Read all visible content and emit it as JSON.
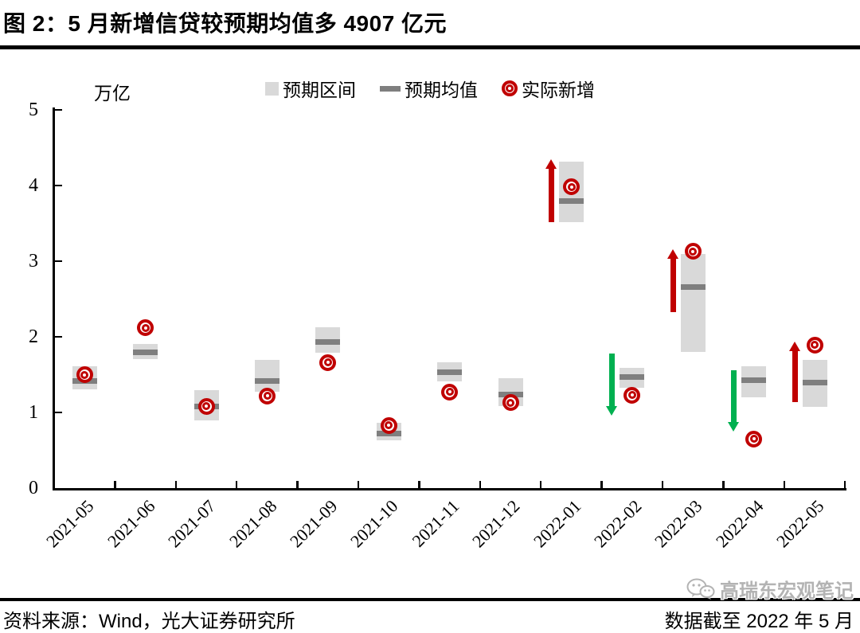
{
  "header": {
    "title": "图 2：5 月新增信贷较预期均值多 4907 亿元"
  },
  "y_axis": {
    "unit_label": "万亿",
    "tick_labels": [
      "0",
      "1",
      "2",
      "3",
      "4",
      "5"
    ]
  },
  "legend": {
    "items": [
      {
        "label": "预期区间",
        "marker": "gray-box"
      },
      {
        "label": "预期均值",
        "marker": "gray-dash"
      },
      {
        "label": "实际新增",
        "marker": "red-ring"
      }
    ]
  },
  "footer": {
    "source": "资料来源：Wind，光大证券研究所",
    "cutoff": "数据截至 2022 年 5 月"
  },
  "watermark": {
    "label": "高瑞东宏观笔记",
    "icon": "wechat-icon"
  },
  "colors": {
    "range_box": "#d9d9d9",
    "mean_line": "#7f7f7f",
    "actual_marker": "#c00000",
    "up_arrow": "#c00000",
    "down_arrow": "#00b050",
    "axis": "#000000",
    "watermark": "#b3b3b3"
  },
  "chart_data": {
    "type": "range_bar",
    "title": "图 2：5 月新增信贷较预期均值多 4907 亿元",
    "ylabel": "万亿",
    "ylim": [
      0,
      5
    ],
    "yticks": [
      0,
      1,
      2,
      3,
      4,
      5
    ],
    "grid": false,
    "legend_position": "top",
    "categories": [
      "2021-05",
      "2021-06",
      "2021-07",
      "2021-08",
      "2021-09",
      "2021-10",
      "2021-11",
      "2021-12",
      "2022-01",
      "2022-02",
      "2022-03",
      "2022-04",
      "2022-05"
    ],
    "series": [
      {
        "name": "预期区间",
        "type": "range",
        "low": [
          1.3,
          1.7,
          0.89,
          1.27,
          1.79,
          0.63,
          1.41,
          1.08,
          3.52,
          1.33,
          1.8,
          1.2,
          1.07
        ],
        "high": [
          1.61,
          1.91,
          1.3,
          1.7,
          2.13,
          0.86,
          1.66,
          1.45,
          4.32,
          1.59,
          3.1,
          1.61,
          1.7
        ]
      },
      {
        "name": "预期均值",
        "type": "mean_tick",
        "values": [
          1.42,
          1.8,
          1.08,
          1.42,
          1.93,
          0.72,
          1.53,
          1.24,
          3.79,
          1.47,
          2.66,
          1.43,
          1.4
        ]
      },
      {
        "name": "实际新增",
        "type": "point",
        "values": [
          1.5,
          2.12,
          1.08,
          1.22,
          1.66,
          0.83,
          1.27,
          1.13,
          3.98,
          1.23,
          3.13,
          0.65,
          1.89
        ]
      }
    ],
    "arrows": [
      {
        "category": "2022-01",
        "direction": "up",
        "from": 3.52,
        "to": 4.35,
        "color": "#c00000"
      },
      {
        "category": "2022-02",
        "direction": "down",
        "from": 1.78,
        "to": 0.96,
        "color": "#00b050"
      },
      {
        "category": "2022-03",
        "direction": "up",
        "from": 2.33,
        "to": 3.16,
        "color": "#c00000"
      },
      {
        "category": "2022-04",
        "direction": "down",
        "from": 1.56,
        "to": 0.75,
        "color": "#00b050"
      },
      {
        "category": "2022-05",
        "direction": "up",
        "from": 1.14,
        "to": 1.94,
        "color": "#c00000"
      }
    ]
  }
}
